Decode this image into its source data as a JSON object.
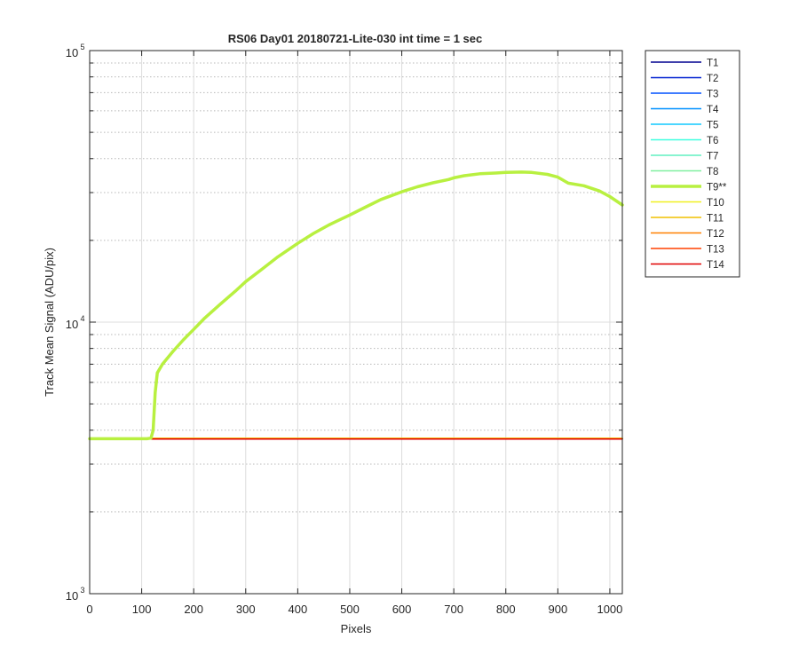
{
  "chart_data": {
    "type": "line",
    "title": "RS06 Day01 20180721-Lite-030 int time = 1 sec",
    "xlabel": "Pixels",
    "ylabel": "Track Mean Signal (ADU/pix)",
    "xlim": [
      0,
      1024
    ],
    "ylim": [
      1000,
      100000
    ],
    "yscale": "log",
    "grid": true,
    "minor_grid": true,
    "x_ticks": [
      0,
      100,
      200,
      300,
      400,
      500,
      600,
      700,
      800,
      900,
      1000
    ],
    "y_tick_labels": [
      {
        "value": 1000,
        "base": "10",
        "exp": "3"
      },
      {
        "value": 10000,
        "base": "10",
        "exp": "4"
      },
      {
        "value": 100000,
        "base": "10",
        "exp": "5"
      }
    ],
    "legend_position": "outside-right-top",
    "series": [
      {
        "name": "T1",
        "color": "#00008f",
        "width": 1.5,
        "x": [
          0,
          1024
        ],
        "y": [
          3720,
          3720
        ]
      },
      {
        "name": "T2",
        "color": "#0020d0",
        "width": 1.5,
        "x": [
          0,
          1024
        ],
        "y": [
          3720,
          3720
        ]
      },
      {
        "name": "T3",
        "color": "#0050ff",
        "width": 1.5,
        "x": [
          0,
          1024
        ],
        "y": [
          3720,
          3720
        ]
      },
      {
        "name": "T4",
        "color": "#0090ff",
        "width": 1.5,
        "x": [
          0,
          1024
        ],
        "y": [
          3720,
          3720
        ]
      },
      {
        "name": "T5",
        "color": "#10c8ff",
        "width": 1.5,
        "x": [
          0,
          1024
        ],
        "y": [
          3720,
          3720
        ]
      },
      {
        "name": "T6",
        "color": "#40ffe0",
        "width": 1.5,
        "x": [
          0,
          1024
        ],
        "y": [
          3720,
          3720
        ]
      },
      {
        "name": "T7",
        "color": "#60f0c0",
        "width": 1.5,
        "x": [
          0,
          1024
        ],
        "y": [
          3720,
          3720
        ]
      },
      {
        "name": "T8",
        "color": "#80f0a0",
        "width": 1.5,
        "x": [
          0,
          1024
        ],
        "y": [
          3720,
          3720
        ]
      },
      {
        "name": "T10",
        "color": "#f0f020",
        "width": 1.5,
        "x": [
          0,
          1024
        ],
        "y": [
          3740,
          3740
        ]
      },
      {
        "name": "T11",
        "color": "#f0c000",
        "width": 1.5,
        "x": [
          0,
          1024
        ],
        "y": [
          3725,
          3725
        ]
      },
      {
        "name": "T12",
        "color": "#ff8000",
        "width": 1.5,
        "x": [
          0,
          1024
        ],
        "y": [
          3720,
          3720
        ]
      },
      {
        "name": "T13",
        "color": "#ff4000",
        "width": 1.5,
        "x": [
          0,
          1024
        ],
        "y": [
          3715,
          3715
        ]
      },
      {
        "name": "T14",
        "color": "#e00000",
        "width": 1.5,
        "x": [
          0,
          1024
        ],
        "y": [
          3710,
          3710
        ]
      },
      {
        "name": "T9**",
        "color": "#b8f040",
        "width": 3.5,
        "x": [
          0,
          110,
          118,
          122,
          126,
          130,
          140,
          160,
          180,
          200,
          220,
          250,
          280,
          300,
          330,
          360,
          400,
          430,
          460,
          480,
          500,
          530,
          560,
          590,
          600,
          630,
          660,
          690,
          700,
          720,
          750,
          780,
          800,
          830,
          850,
          880,
          900,
          920,
          950,
          980,
          1000,
          1024
        ],
        "y": [
          3720,
          3720,
          3740,
          4000,
          5500,
          6500,
          7000,
          7800,
          8600,
          9400,
          10300,
          11600,
          13000,
          14100,
          15600,
          17300,
          19500,
          21200,
          22800,
          23800,
          24800,
          26500,
          28300,
          29700,
          30200,
          31500,
          32600,
          33500,
          34000,
          34600,
          35200,
          35400,
          35600,
          35700,
          35600,
          35000,
          34200,
          32500,
          31800,
          30400,
          29000,
          27000
        ]
      }
    ],
    "legend_order": [
      "T1",
      "T2",
      "T3",
      "T4",
      "T5",
      "T6",
      "T7",
      "T8",
      "T9**",
      "T10",
      "T11",
      "T12",
      "T13",
      "T14"
    ],
    "colors": {
      "axis": "#262626",
      "grid": "#dcdcdc",
      "minor_grid": "#b8b8b8"
    }
  }
}
